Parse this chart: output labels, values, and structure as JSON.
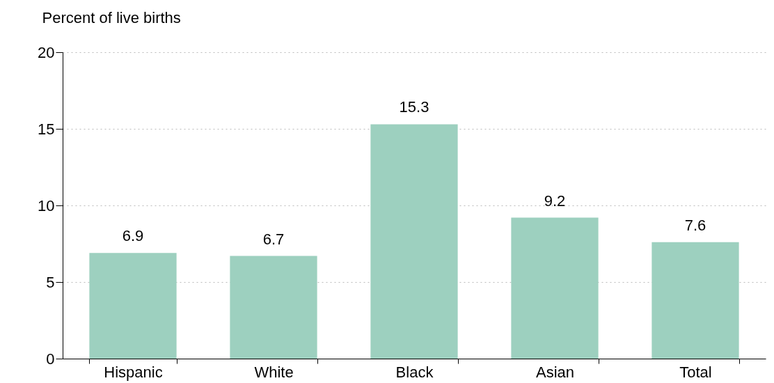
{
  "chart_data": {
    "type": "bar",
    "ylabel": "Percent of live births",
    "categories": [
      "Hispanic",
      "White",
      "Black",
      "Asian",
      "Total"
    ],
    "values": [
      6.9,
      6.7,
      15.3,
      9.2,
      7.6
    ],
    "color": "#9dd0bf",
    "ylim": [
      0,
      20
    ],
    "yticks": [
      0,
      5,
      10,
      15,
      20
    ],
    "grid": "y",
    "data_labels": true
  }
}
